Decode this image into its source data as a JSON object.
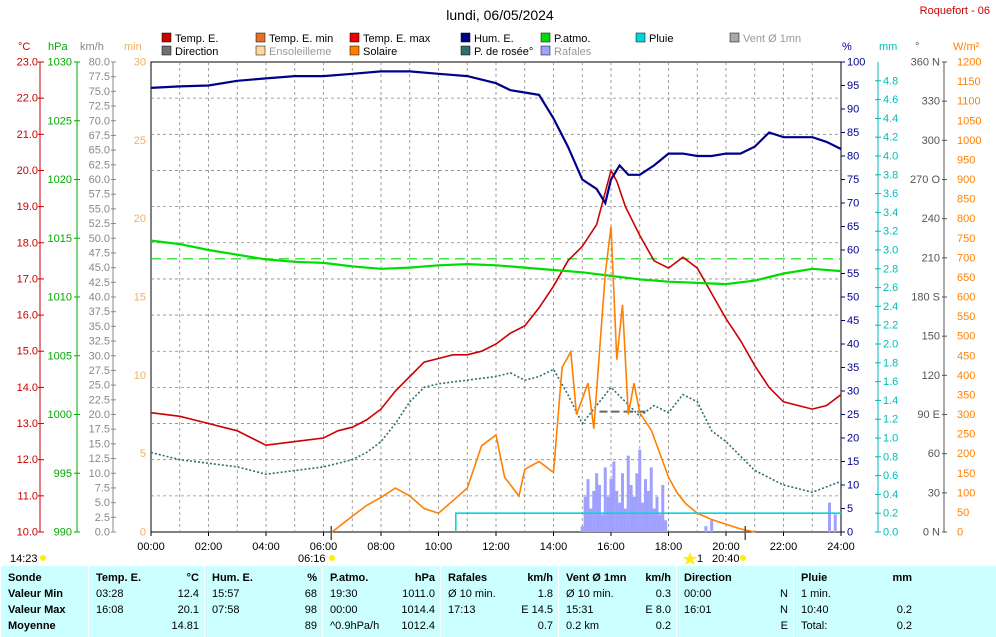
{
  "title": "lundi, 06/05/2024",
  "station": "Roquefort - 06",
  "legend": [
    {
      "label": "Temp. E.",
      "color": "#cc0000"
    },
    {
      "label": "Temp. E. min",
      "color": "#e8702a"
    },
    {
      "label": "Temp. E. max",
      "color": "#ee0000"
    },
    {
      "label": "Hum. E.",
      "color": "#00008b"
    },
    {
      "label": "P.atmo.",
      "color": "#00dd00"
    },
    {
      "label": "Pluie",
      "color": "#00d8d8"
    },
    {
      "label": "Vent Ø 1mn",
      "color": "#a8a8a8"
    },
    {
      "label": "Direction",
      "color": "#707070"
    },
    {
      "label": "Ensoleilleme",
      "color": "#ffd8a0"
    },
    {
      "label": "Solaire",
      "color": "#ff8000"
    },
    {
      "label": "P. de rosée°",
      "color": "#2f6f6f"
    },
    {
      "label": "Rafales",
      "color": "#a0a0ff"
    }
  ],
  "axis_units": {
    "temp": "°C",
    "press": "hPa",
    "wind": "km/h",
    "sun": "min",
    "hum": "%",
    "rain": "mm",
    "dir": "°",
    "solar": "W/m²"
  },
  "markers": {
    "left": "14:23",
    "sunrise": "06:16",
    "sunset": "20:40",
    "moon": "1"
  },
  "chart_data": {
    "type": "line",
    "x_unit": "hour",
    "xlim": [
      0,
      24
    ],
    "x_ticks": [
      "00:00",
      "02:00",
      "04:00",
      "06:00",
      "08:00",
      "10:00",
      "12:00",
      "14:00",
      "16:00",
      "18:00",
      "20:00",
      "22:00",
      "24:00"
    ],
    "axes": {
      "temp": {
        "range": [
          10,
          23
        ],
        "ticks": [
          "10.0",
          "11.0",
          "12.0",
          "13.0",
          "14.0",
          "15.0",
          "16.0",
          "17.0",
          "18.0",
          "19.0",
          "20.0",
          "21.0",
          "22.0",
          "23.0"
        ]
      },
      "press": {
        "range": [
          990,
          1030
        ],
        "ticks": [
          "990",
          "995",
          "1000",
          "1005",
          "1010",
          "1015",
          "1020",
          "1025",
          "1030"
        ]
      },
      "wind": {
        "range": [
          0,
          80
        ],
        "step": 2.5
      },
      "sun": {
        "range": [
          0,
          30
        ],
        "ticks": [
          "0",
          "5",
          "10",
          "15",
          "20",
          "25",
          "30"
        ]
      },
      "hum": {
        "range": [
          0,
          100
        ],
        "step": 5
      },
      "rain": {
        "range": [
          0,
          5
        ],
        "ticks": [
          "0.0",
          "0.2",
          "0.4",
          "0.6",
          "0.8",
          "1.0",
          "1.2",
          "1.4",
          "1.6",
          "1.8",
          "2.0",
          "2.2",
          "2.4",
          "2.6",
          "2.8",
          "3.0",
          "3.2",
          "3.4",
          "3.6",
          "3.8",
          "4.0",
          "4.2",
          "4.4",
          "4.6",
          "4.8"
        ]
      },
      "dir": {
        "range": [
          0,
          360
        ],
        "ticks": [
          "0 N",
          "30",
          "60",
          "90 E",
          "120",
          "150",
          "180 S",
          "210",
          "240",
          "270 O",
          "300",
          "330",
          "360 N"
        ]
      },
      "solar": {
        "range": [
          0,
          1200
        ],
        "step": 50
      }
    },
    "pressure_reference_hpa": 1013.25,
    "series": [
      {
        "name": "Temp. E.",
        "color": "#cc0000",
        "axis": "temp",
        "points": [
          [
            0,
            13.3
          ],
          [
            1,
            13.2
          ],
          [
            1.5,
            13.1
          ],
          [
            2,
            13.0
          ],
          [
            2.5,
            12.9
          ],
          [
            3,
            12.8
          ],
          [
            3.5,
            12.6
          ],
          [
            4,
            12.4
          ],
          [
            5,
            12.5
          ],
          [
            6,
            12.6
          ],
          [
            6.5,
            12.8
          ],
          [
            7,
            12.9
          ],
          [
            7.5,
            13.1
          ],
          [
            8,
            13.4
          ],
          [
            8.5,
            13.9
          ],
          [
            9,
            14.3
          ],
          [
            9.5,
            14.7
          ],
          [
            10,
            14.8
          ],
          [
            10.5,
            14.9
          ],
          [
            11,
            14.9
          ],
          [
            11.5,
            15.0
          ],
          [
            12,
            15.2
          ],
          [
            12.5,
            15.5
          ],
          [
            13,
            15.7
          ],
          [
            13.5,
            16.2
          ],
          [
            14,
            16.8
          ],
          [
            14.5,
            17.5
          ],
          [
            15,
            17.9
          ],
          [
            15.5,
            18.5
          ],
          [
            16,
            20.0
          ],
          [
            16.2,
            19.7
          ],
          [
            16.5,
            19.0
          ],
          [
            17,
            18.2
          ],
          [
            17.5,
            17.5
          ],
          [
            18,
            17.3
          ],
          [
            18.5,
            17.6
          ],
          [
            19,
            17.3
          ],
          [
            19.5,
            16.6
          ],
          [
            20,
            15.9
          ],
          [
            20.5,
            15.3
          ],
          [
            21,
            14.6
          ],
          [
            21.5,
            14.0
          ],
          [
            22,
            13.6
          ],
          [
            22.5,
            13.5
          ],
          [
            23,
            13.4
          ],
          [
            23.5,
            13.5
          ],
          [
            24,
            13.8
          ]
        ]
      },
      {
        "name": "Hum. E.",
        "color": "#00008b",
        "axis": "hum",
        "points": [
          [
            0,
            94.5
          ],
          [
            1,
            94.8
          ],
          [
            2,
            95
          ],
          [
            3,
            96
          ],
          [
            4,
            96.5
          ],
          [
            5,
            97
          ],
          [
            6,
            97
          ],
          [
            7,
            97.5
          ],
          [
            8,
            98
          ],
          [
            9,
            98
          ],
          [
            10,
            97.5
          ],
          [
            11,
            97
          ],
          [
            12,
            95.5
          ],
          [
            12.5,
            94
          ],
          [
            13,
            93.5
          ],
          [
            13.5,
            93
          ],
          [
            14,
            88
          ],
          [
            14.5,
            82
          ],
          [
            15,
            75
          ],
          [
            15.5,
            73
          ],
          [
            15.8,
            70
          ],
          [
            16,
            75
          ],
          [
            16.3,
            78
          ],
          [
            16.6,
            76
          ],
          [
            17,
            76
          ],
          [
            17.5,
            78
          ],
          [
            18,
            80.5
          ],
          [
            18.5,
            80.5
          ],
          [
            19,
            80
          ],
          [
            19.5,
            80
          ],
          [
            20,
            80.5
          ],
          [
            20.5,
            80.5
          ],
          [
            21,
            82
          ],
          [
            21.5,
            85
          ],
          [
            22,
            84
          ],
          [
            22.5,
            84
          ],
          [
            23,
            84
          ],
          [
            23.5,
            83
          ],
          [
            24,
            81.5
          ]
        ]
      },
      {
        "name": "P.atmo.",
        "color": "#00dd00",
        "axis": "press",
        "points": [
          [
            0,
            1014.8
          ],
          [
            1,
            1014.5
          ],
          [
            2,
            1014.0
          ],
          [
            3,
            1013.6
          ],
          [
            4,
            1013.2
          ],
          [
            5,
            1013.0
          ],
          [
            6,
            1012.9
          ],
          [
            7,
            1012.6
          ],
          [
            8,
            1012.4
          ],
          [
            9,
            1012.5
          ],
          [
            10,
            1012.7
          ],
          [
            11,
            1012.8
          ],
          [
            12,
            1012.7
          ],
          [
            13,
            1012.5
          ],
          [
            14,
            1012.3
          ],
          [
            15,
            1012.1
          ],
          [
            16,
            1011.8
          ],
          [
            17,
            1011.5
          ],
          [
            18,
            1011.3
          ],
          [
            19,
            1011.2
          ],
          [
            20,
            1011.1
          ],
          [
            21,
            1011.4
          ],
          [
            22,
            1012.0
          ],
          [
            23,
            1012.4
          ],
          [
            24,
            1012.2
          ]
        ]
      },
      {
        "name": "P. de rosée°",
        "color": "#2f6f6f",
        "axis": "temp",
        "points": [
          [
            0,
            12.2
          ],
          [
            1,
            12.0
          ],
          [
            2,
            11.9
          ],
          [
            3,
            11.8
          ],
          [
            4,
            11.6
          ],
          [
            5,
            11.7
          ],
          [
            6,
            11.8
          ],
          [
            7,
            12.0
          ],
          [
            7.5,
            12.2
          ],
          [
            8,
            12.5
          ],
          [
            8.5,
            13.0
          ],
          [
            9,
            13.6
          ],
          [
            9.5,
            14.0
          ],
          [
            10,
            14.1
          ],
          [
            11,
            14.2
          ],
          [
            12,
            14.3
          ],
          [
            12.5,
            14.4
          ],
          [
            13,
            14.2
          ],
          [
            13.5,
            14.3
          ],
          [
            14,
            14.5
          ],
          [
            14.5,
            13.8
          ],
          [
            15,
            13.0
          ],
          [
            15.5,
            13.5
          ],
          [
            16,
            14.0
          ],
          [
            16.5,
            13.6
          ],
          [
            17,
            13.2
          ],
          [
            17.5,
            13.5
          ],
          [
            18,
            13.3
          ],
          [
            18.5,
            13.8
          ],
          [
            19,
            13.6
          ],
          [
            19.5,
            12.8
          ],
          [
            20,
            12.5
          ],
          [
            20.5,
            12.1
          ],
          [
            21,
            11.7
          ],
          [
            22,
            11.3
          ],
          [
            23,
            11.1
          ],
          [
            24,
            11.4
          ]
        ]
      },
      {
        "name": "Solaire",
        "color": "#ff8000",
        "axis": "sun",
        "points": [
          [
            6.3,
            0
          ],
          [
            7,
            1
          ],
          [
            7.5,
            1.7
          ],
          [
            8,
            2.2
          ],
          [
            8.5,
            2.8
          ],
          [
            9,
            2.3
          ],
          [
            9.5,
            1.5
          ],
          [
            10,
            1.2
          ],
          [
            10.5,
            2.0
          ],
          [
            11,
            2.8
          ],
          [
            11.5,
            5.5
          ],
          [
            12,
            6.2
          ],
          [
            12.3,
            3.5
          ],
          [
            12.8,
            2.3
          ],
          [
            13,
            4.0
          ],
          [
            13.5,
            4.5
          ],
          [
            14,
            3.8
          ],
          [
            14.3,
            10.5
          ],
          [
            14.6,
            11.5
          ],
          [
            14.8,
            7.5
          ],
          [
            15,
            8.5
          ],
          [
            15.2,
            9.5
          ],
          [
            15.4,
            6.6
          ],
          [
            15.6,
            11.5
          ],
          [
            15.8,
            16.5
          ],
          [
            16,
            19.5
          ],
          [
            16.2,
            11
          ],
          [
            16.4,
            14.5
          ],
          [
            16.6,
            7.5
          ],
          [
            16.8,
            9.5
          ],
          [
            17,
            7.6
          ],
          [
            17.4,
            6.5
          ],
          [
            17.8,
            4.5
          ],
          [
            18,
            3.5
          ],
          [
            18.3,
            2.5
          ],
          [
            18.6,
            1.8
          ],
          [
            19,
            1.2
          ],
          [
            19.5,
            0.8
          ],
          [
            20,
            0.5
          ],
          [
            20.5,
            0.2
          ],
          [
            21,
            0
          ]
        ]
      },
      {
        "name": "Pluie",
        "color": "#00d8d8",
        "axis": "rain",
        "points": [
          [
            10.6,
            0
          ],
          [
            10.6,
            0.2
          ],
          [
            24,
            0.2
          ]
        ]
      }
    ],
    "gusts": {
      "name": "Rafales",
      "color": "#a0a0ff",
      "axis": "wind",
      "points": [
        [
          15,
          1
        ],
        [
          15.1,
          6
        ],
        [
          15.2,
          9
        ],
        [
          15.3,
          4
        ],
        [
          15.4,
          7
        ],
        [
          15.5,
          10
        ],
        [
          15.6,
          8
        ],
        [
          15.7,
          3
        ],
        [
          15.8,
          11
        ],
        [
          15.9,
          6
        ],
        [
          16,
          9
        ],
        [
          16.1,
          12
        ],
        [
          16.2,
          7
        ],
        [
          16.3,
          5
        ],
        [
          16.4,
          10
        ],
        [
          16.5,
          4
        ],
        [
          16.6,
          13
        ],
        [
          16.7,
          8
        ],
        [
          16.8,
          6
        ],
        [
          16.9,
          10
        ],
        [
          17,
          14
        ],
        [
          17.1,
          5
        ],
        [
          17.2,
          9
        ],
        [
          17.3,
          7
        ],
        [
          17.4,
          11
        ],
        [
          17.5,
          4
        ],
        [
          17.6,
          6
        ],
        [
          17.7,
          3
        ],
        [
          17.8,
          8
        ],
        [
          17.9,
          2
        ],
        [
          19.3,
          1
        ],
        [
          19.5,
          2
        ],
        [
          23.6,
          5
        ],
        [
          23.8,
          3
        ]
      ]
    },
    "wind_avg_segments": [
      [
        15.6,
        16.5,
        20.5
      ],
      [
        16.5,
        17.3,
        20.5
      ]
    ]
  },
  "stats": {
    "headers": [
      {
        "label": "Sonde",
        "unit": ""
      },
      {
        "label": "Temp. E.",
        "unit": "°C"
      },
      {
        "label": "Hum. E.",
        "unit": "%"
      },
      {
        "label": "P.atmo.",
        "unit": "hPa"
      },
      {
        "label": "Rafales",
        "unit": "km/h"
      },
      {
        "label": "Vent Ø 1mn",
        "unit": "km/h"
      },
      {
        "label": "Direction",
        "unit": ""
      },
      {
        "label": "Pluie",
        "unit": "mm"
      }
    ],
    "rows": [
      {
        "label": "Valeur Min",
        "cells": [
          [
            "03:28",
            "12.4"
          ],
          [
            "15:57",
            "68"
          ],
          [
            "19:30",
            "1011.0"
          ],
          [
            "Ø 10 min.",
            "1.8"
          ],
          [
            "Ø 10 min.",
            "0.3"
          ],
          [
            "00:00",
            "N"
          ],
          [
            "1 min.",
            ""
          ]
        ]
      },
      {
        "label": "Valeur Max",
        "cells": [
          [
            "16:08",
            "20.1"
          ],
          [
            "07:58",
            "98"
          ],
          [
            "00:00",
            "1014.4"
          ],
          [
            "17:13",
            "E 14.5"
          ],
          [
            "15:31",
            "E 8.0"
          ],
          [
            "16:01",
            "N"
          ],
          [
            "10:40",
            "0.2"
          ]
        ]
      },
      {
        "label": "Moyenne",
        "cells": [
          [
            "",
            "14.81"
          ],
          [
            "",
            "89"
          ],
          [
            "^0.9hPa/h",
            "1012.4"
          ],
          [
            "",
            "0.7"
          ],
          [
            "0.2 km",
            "0.2"
          ],
          [
            "",
            "E"
          ],
          [
            "Total:",
            "0.2"
          ]
        ]
      }
    ]
  }
}
